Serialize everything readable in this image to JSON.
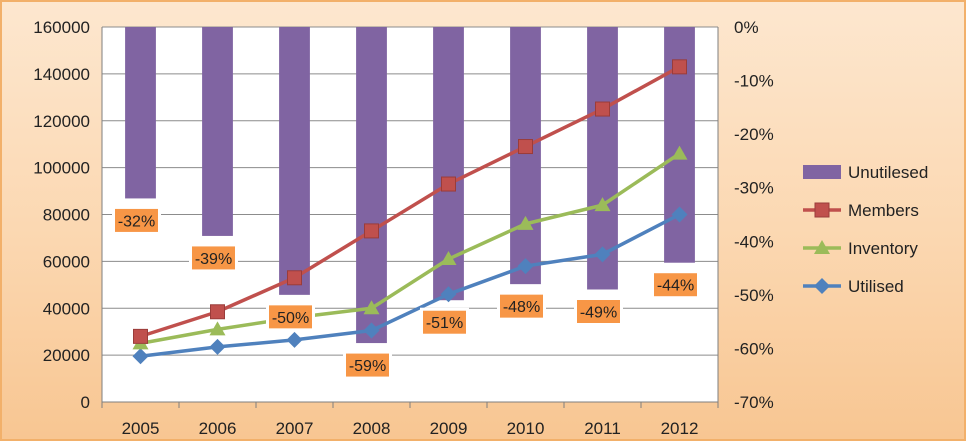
{
  "chart_data": {
    "type": "bar",
    "categories": [
      "2005",
      "2006",
      "2007",
      "2008",
      "2009",
      "2010",
      "2011",
      "2012"
    ],
    "y_left": {
      "min": 0,
      "max": 160000,
      "step": 20000,
      "ticks": [
        "0",
        "20000",
        "40000",
        "60000",
        "80000",
        "100000",
        "120000",
        "140000",
        "160000"
      ]
    },
    "y_right": {
      "min": -70,
      "max": 0,
      "step": 10,
      "ticks": [
        "0%",
        "-10%",
        "-20%",
        "-30%",
        "-40%",
        "-50%",
        "-60%",
        "-70%"
      ]
    },
    "grid": true,
    "legend_position": "right",
    "series": [
      {
        "name": "Unutilesed",
        "kind": "bar",
        "axis": "right",
        "color": "#8064a2",
        "values": [
          -32,
          -39,
          -50,
          -59,
          -51,
          -48,
          -49,
          -44
        ],
        "labels": [
          "-32%",
          "-39%",
          "-50%",
          "-59%",
          "-51%",
          "-48%",
          "-49%",
          "-44%"
        ]
      },
      {
        "name": "Members",
        "kind": "line",
        "marker": "square",
        "axis": "left",
        "color": "#c0504d",
        "values": [
          28000,
          38500,
          53000,
          73000,
          93000,
          109000,
          125000,
          143000
        ]
      },
      {
        "name": "Inventory",
        "kind": "line",
        "marker": "triangle",
        "axis": "left",
        "color": "#9bbb59",
        "values": [
          25000,
          31000,
          36000,
          40000,
          61000,
          76000,
          84000,
          106000
        ]
      },
      {
        "name": "Utilised",
        "kind": "line",
        "marker": "diamond",
        "axis": "left",
        "color": "#4f81bd",
        "values": [
          19500,
          23500,
          26500,
          30500,
          46000,
          58000,
          63000,
          80000
        ]
      }
    ],
    "legend": [
      "Unutilesed",
      "Members",
      "Inventory",
      "Utilised"
    ],
    "data_label_style": {
      "background": "#f79646",
      "border": "#ffffff"
    }
  }
}
